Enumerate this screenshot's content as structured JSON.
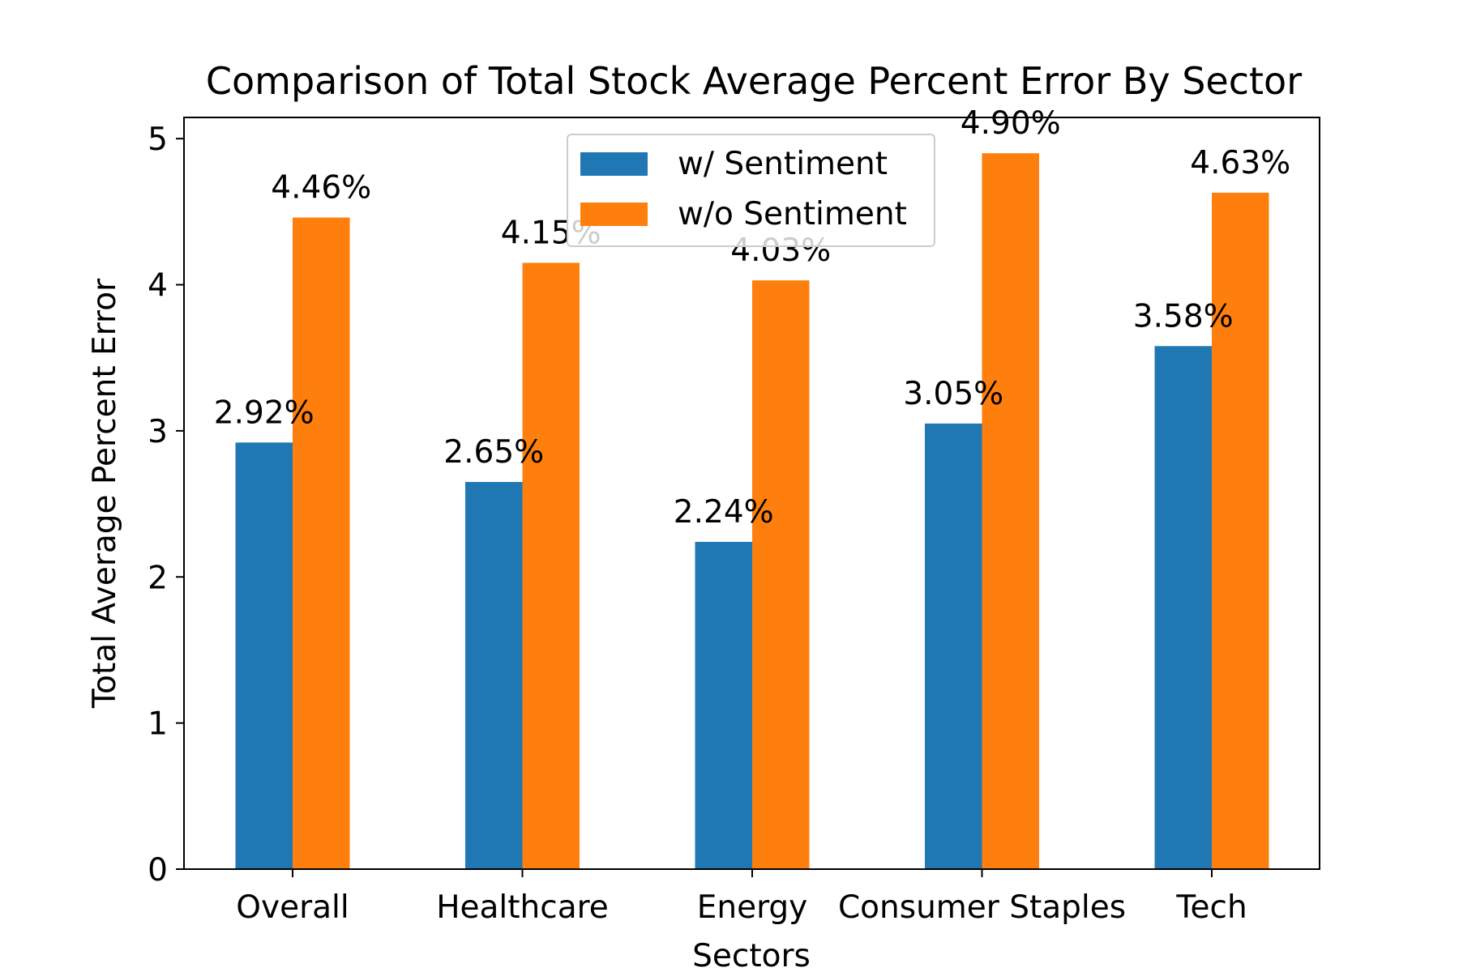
{
  "chart_data": {
    "type": "bar",
    "title": "Comparison of Total Stock Average Percent Error By Sector",
    "xlabel": "Sectors",
    "ylabel": "Total Average Percent Error",
    "categories": [
      "Overall",
      "Healthcare",
      "Energy",
      "Consumer Staples",
      "Tech"
    ],
    "series": [
      {
        "name": "w/ Sentiment",
        "color": "#1f77b4",
        "values": [
          2.92,
          2.65,
          2.24,
          3.05,
          3.58
        ],
        "labels": [
          "2.92%",
          "2.65%",
          "2.24%",
          "3.05%",
          "3.58%"
        ]
      },
      {
        "name": "w/o Sentiment",
        "color": "#ff7f0e",
        "values": [
          4.46,
          4.15,
          4.03,
          4.9,
          4.63
        ],
        "labels": [
          "4.46%",
          "4.15%",
          "4.03%",
          "4.90%",
          "4.63%"
        ]
      }
    ],
    "ylim": [
      0,
      5.145
    ],
    "yticks": [
      0,
      1,
      2,
      3,
      4,
      5
    ],
    "ytick_labels": [
      "0",
      "1",
      "2",
      "3",
      "4",
      "5"
    ],
    "grid": false,
    "legend_position": "upper center"
  }
}
